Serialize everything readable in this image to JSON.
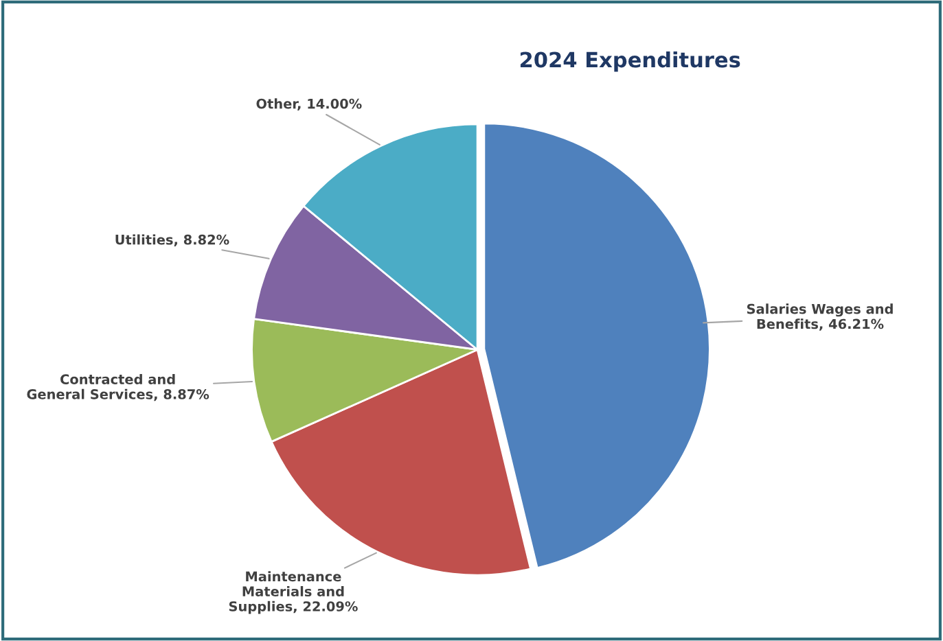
{
  "chart_data": {
    "type": "pie",
    "title": "2024 Expenditures",
    "categories": [
      "Salaries Wages and\nBenefits",
      "Maintenance\nMaterials and\nSupplies",
      "Contracted and\nGeneral Services",
      "Utilities",
      "Other"
    ],
    "values": [
      46.21,
      22.09,
      8.87,
      8.82,
      14.0
    ],
    "value_labels": [
      "46.21%",
      "22.09%",
      "8.87%",
      "8.82%",
      "14.00%"
    ],
    "colors": [
      "#4f81bd",
      "#c0504d",
      "#9bbb59",
      "#8064a2",
      "#4bacc6"
    ],
    "legend": false
  }
}
